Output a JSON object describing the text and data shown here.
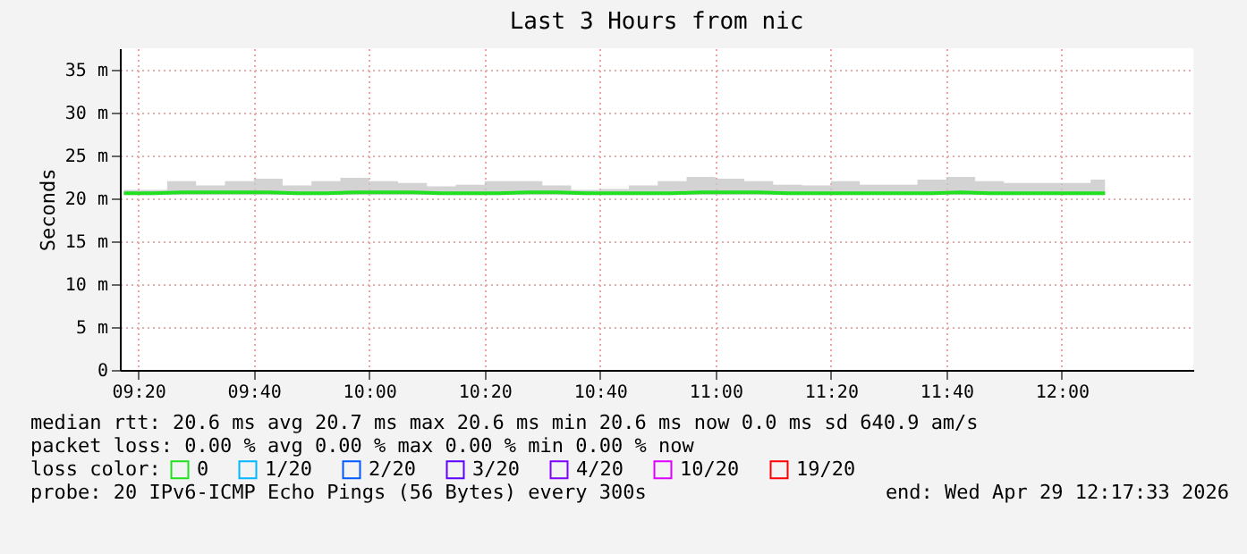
{
  "chart_data": {
    "type": "line",
    "title": "Last 3 Hours from nic",
    "ylabel": "Seconds",
    "legend_title": "loss color:",
    "legend": "bottom",
    "x": [
      9.2917,
      9.375,
      9.4583,
      9.5417,
      9.625,
      9.7083,
      9.7917,
      9.875,
      9.9583,
      10.0417,
      10.125,
      10.2083,
      10.2917,
      10.375,
      10.4583,
      10.5417,
      10.625,
      10.7083,
      10.7917,
      10.875,
      10.9583,
      11.0417,
      11.125,
      11.2083,
      11.2917,
      11.375,
      11.4583,
      11.5417,
      11.625,
      11.7083,
      11.7917,
      11.875,
      11.9583,
      12.0417,
      12.125
    ],
    "series": [
      {
        "name": "0",
        "color": "#20e020",
        "values": [
          20.6,
          20.6,
          20.7,
          20.7,
          20.7,
          20.7,
          20.6,
          20.6,
          20.7,
          20.7,
          20.7,
          20.6,
          20.6,
          20.6,
          20.7,
          20.7,
          20.6,
          20.6,
          20.6,
          20.6,
          20.7,
          20.7,
          20.7,
          20.6,
          20.6,
          20.6,
          20.6,
          20.6,
          20.6,
          20.7,
          20.6,
          20.6,
          20.6,
          20.6,
          20.6
        ],
        "lower": [
          20.4,
          20.4,
          20.4,
          20.4,
          20.4,
          20.4,
          20.4,
          20.4,
          20.4,
          20.4,
          20.4,
          20.4,
          20.4,
          20.4,
          20.4,
          20.4,
          20.4,
          20.4,
          20.4,
          20.4,
          20.4,
          20.4,
          20.4,
          20.4,
          20.4,
          20.4,
          20.4,
          20.4,
          20.4,
          20.4,
          20.4,
          20.4,
          20.4,
          20.4,
          20.4
        ],
        "upper": [
          21.0,
          21.0,
          22.0,
          21.5,
          22.0,
          22.3,
          21.5,
          22.0,
          22.4,
          22.0,
          21.8,
          21.4,
          21.6,
          22.0,
          22.0,
          21.5,
          21.0,
          21.1,
          21.5,
          22.0,
          22.5,
          22.3,
          22.0,
          21.6,
          21.5,
          22.0,
          21.6,
          21.6,
          22.2,
          22.5,
          22.0,
          21.8,
          21.8,
          21.8,
          22.2
        ]
      },
      {
        "name": "1/20",
        "color": "#00b8ff",
        "values": [
          null,
          null,
          null,
          null,
          null,
          null,
          null,
          null,
          null,
          null,
          null,
          null,
          null,
          null,
          null,
          null,
          null,
          null,
          null,
          null,
          null,
          null,
          null,
          null,
          null,
          null,
          null,
          null,
          null,
          null,
          null,
          null,
          null,
          null,
          null
        ]
      },
      {
        "name": "2/20",
        "color": "#0059ff",
        "values": [
          null,
          null,
          null,
          null,
          null,
          null,
          null,
          null,
          null,
          null,
          null,
          null,
          null,
          null,
          null,
          null,
          null,
          null,
          null,
          null,
          null,
          null,
          null,
          null,
          null,
          null,
          null,
          null,
          null,
          null,
          null,
          null,
          null,
          null,
          null
        ]
      },
      {
        "name": "3/20",
        "color": "#5e00ff",
        "values": [
          null,
          null,
          null,
          null,
          null,
          null,
          null,
          null,
          null,
          null,
          null,
          null,
          null,
          null,
          null,
          null,
          null,
          null,
          null,
          null,
          null,
          null,
          null,
          null,
          null,
          null,
          null,
          null,
          null,
          null,
          null,
          null,
          null,
          null,
          null
        ]
      },
      {
        "name": "4/20",
        "color": "#7e00ff",
        "values": [
          null,
          null,
          null,
          null,
          null,
          null,
          null,
          null,
          null,
          null,
          null,
          null,
          null,
          null,
          null,
          null,
          null,
          null,
          null,
          null,
          null,
          null,
          null,
          null,
          null,
          null,
          null,
          null,
          null,
          null,
          null,
          null,
          null,
          null,
          null
        ]
      },
      {
        "name": "10/20",
        "color": "#dd00ff",
        "values": [
          null,
          null,
          null,
          null,
          null,
          null,
          null,
          null,
          null,
          null,
          null,
          null,
          null,
          null,
          null,
          null,
          null,
          null,
          null,
          null,
          null,
          null,
          null,
          null,
          null,
          null,
          null,
          null,
          null,
          null,
          null,
          null,
          null,
          null,
          null
        ]
      },
      {
        "name": "19/20",
        "color": "#ff0000",
        "values": [
          null,
          null,
          null,
          null,
          null,
          null,
          null,
          null,
          null,
          null,
          null,
          null,
          null,
          null,
          null,
          null,
          null,
          null,
          null,
          null,
          null,
          null,
          null,
          null,
          null,
          null,
          null,
          null,
          null,
          null,
          null,
          null,
          null,
          null,
          null
        ]
      }
    ],
    "xlim": [
      9.28,
      12.38
    ],
    "xticks": [
      {
        "value": 9.3333,
        "label": "09:20"
      },
      {
        "value": 9.6667,
        "label": "09:40"
      },
      {
        "value": 10,
        "label": "10:00"
      },
      {
        "value": 10.3333,
        "label": "10:20"
      },
      {
        "value": 10.6667,
        "label": "10:40"
      },
      {
        "value": 11,
        "label": "11:00"
      },
      {
        "value": 11.3333,
        "label": "11:20"
      },
      {
        "value": 11.6667,
        "label": "11:40"
      },
      {
        "value": 12,
        "label": "12:00"
      }
    ],
    "ylim": [
      0,
      37.5
    ],
    "yticks": [
      0,
      {
        "value": 5,
        "label": "5 m"
      },
      {
        "value": 10,
        "label": "10 m"
      },
      {
        "value": 15,
        "label": "15 m"
      },
      {
        "value": 20,
        "label": "20 m"
      },
      {
        "value": 25,
        "label": "25 m"
      },
      {
        "value": 30,
        "label": "30 m"
      },
      {
        "value": 35,
        "label": "35 m"
      }
    ],
    "grid": true,
    "annotations": [
      "median rtt:  20.6 ms avg  20.7 ms max  20.6 ms min  20.6 ms now  0.0 ms sd  640.9  am/s",
      "packet loss: 0.00 % avg  0.00 % max  0.00 % min  0.00 % now",
      "probe:       20 IPv6-ICMP Echo Pings (56 Bytes) every 300s",
      "end: Wed Apr 29 12:17:33 2026"
    ]
  }
}
